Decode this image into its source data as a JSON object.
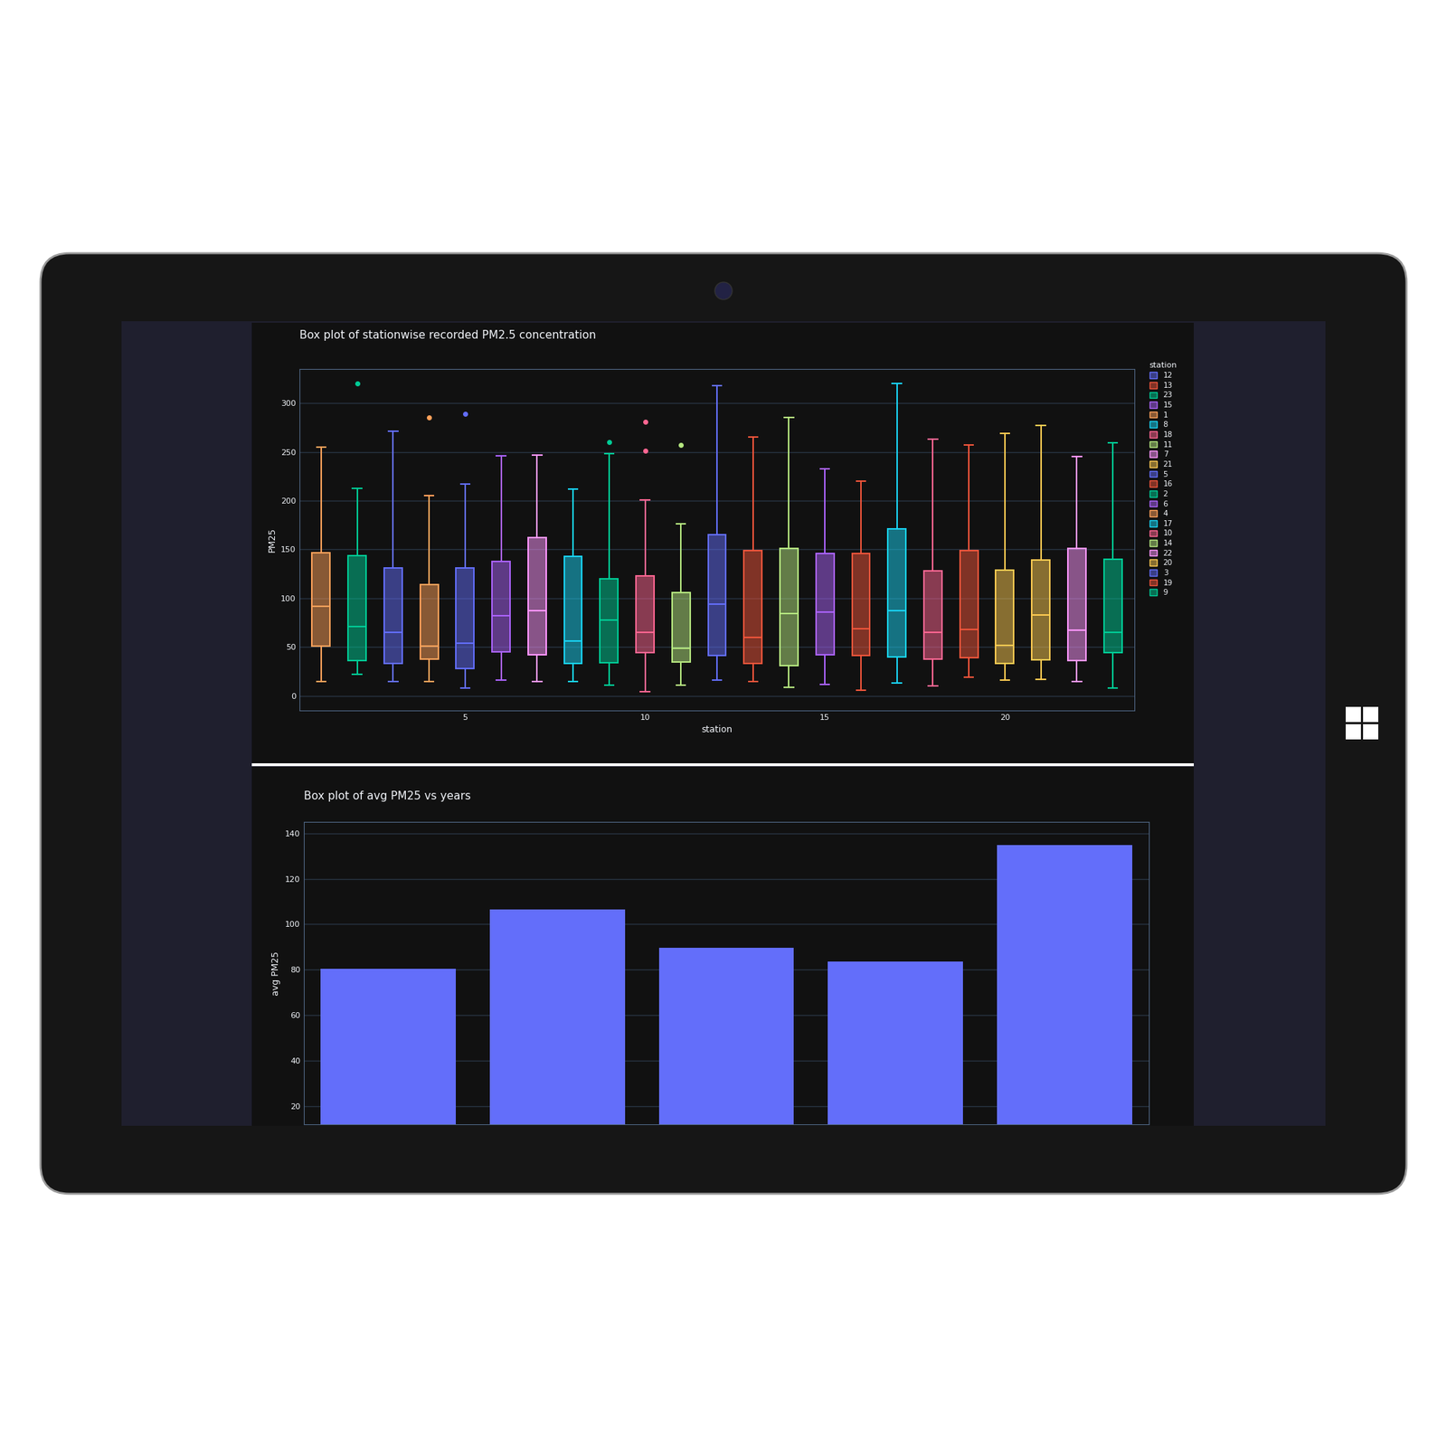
{
  "chart_data": [
    {
      "type": "box",
      "title": "Box plot of stationwise recorded PM2.5 concentration",
      "x_label": "station",
      "y_label": "PM25",
      "legend": "right",
      "legend_title": "station",
      "xlim": [
        0.4,
        23.6
      ],
      "xticks": [
        5,
        10,
        15,
        20
      ],
      "ylim": [
        -15,
        335
      ],
      "yticks": [
        0,
        50,
        100,
        150,
        200,
        250,
        300
      ],
      "grid": true,
      "series": [
        {
          "name": "12",
          "color": "#636efa",
          "x": 12,
          "whislo": 16,
          "q1": 41,
          "med": 94,
          "q3": 165,
          "whishi": 318,
          "outliers": []
        },
        {
          "name": "13",
          "color": "#EF553B",
          "x": 13,
          "whislo": 15,
          "q1": 33,
          "med": 60,
          "q3": 149,
          "whishi": 265,
          "outliers": []
        },
        {
          "name": "23",
          "color": "#00cc96",
          "x": 23,
          "whislo": 8,
          "q1": 44,
          "med": 65,
          "q3": 140,
          "whishi": 259,
          "outliers": []
        },
        {
          "name": "15",
          "color": "#ab63fa",
          "x": 15,
          "whislo": 12,
          "q1": 42,
          "med": 86,
          "q3": 146,
          "whishi": 233,
          "outliers": []
        },
        {
          "name": "1",
          "color": "#FFA15A",
          "x": 1,
          "whislo": 15,
          "q1": 51,
          "med": 92,
          "q3": 147,
          "whishi": 255,
          "outliers": []
        },
        {
          "name": "8",
          "color": "#19d3f3",
          "x": 8,
          "whislo": 15,
          "q1": 33,
          "med": 56,
          "q3": 143,
          "whishi": 212,
          "outliers": []
        },
        {
          "name": "18",
          "color": "#FF6692",
          "x": 18,
          "whislo": 10,
          "q1": 38,
          "med": 65,
          "q3": 128,
          "whishi": 263,
          "outliers": []
        },
        {
          "name": "11",
          "color": "#B6E880",
          "x": 11,
          "whislo": 11,
          "q1": 35,
          "med": 49,
          "q3": 106,
          "whishi": 176,
          "outliers": [
            257
          ]
        },
        {
          "name": "7",
          "color": "#FF97FF",
          "x": 7,
          "whislo": 15,
          "q1": 42,
          "med": 87,
          "q3": 162,
          "whishi": 247,
          "outliers": []
        },
        {
          "name": "21",
          "color": "#FECB52",
          "x": 21,
          "whislo": 17,
          "q1": 37,
          "med": 83,
          "q3": 139,
          "whishi": 277,
          "outliers": []
        },
        {
          "name": "5",
          "color": "#636efa",
          "x": 5,
          "whislo": 8,
          "q1": 28,
          "med": 54,
          "q3": 131,
          "whishi": 217,
          "outliers": [
            289
          ]
        },
        {
          "name": "16",
          "color": "#EF553B",
          "x": 16,
          "whislo": 6,
          "q1": 41,
          "med": 69,
          "q3": 146,
          "whishi": 220,
          "outliers": []
        },
        {
          "name": "2",
          "color": "#00cc96",
          "x": 2,
          "whislo": 22,
          "q1": 36,
          "med": 71,
          "q3": 144,
          "whishi": 213,
          "outliers": [
            320
          ]
        },
        {
          "name": "6",
          "color": "#ab63fa",
          "x": 6,
          "whislo": 16,
          "q1": 45,
          "med": 82,
          "q3": 138,
          "whishi": 246,
          "outliers": []
        },
        {
          "name": "4",
          "color": "#FFA15A",
          "x": 4,
          "whislo": 15,
          "q1": 38,
          "med": 51,
          "q3": 114,
          "whishi": 205,
          "outliers": [
            285
          ]
        },
        {
          "name": "17",
          "color": "#19d3f3",
          "x": 17,
          "whislo": 13,
          "q1": 40,
          "med": 87,
          "q3": 171,
          "whishi": 320,
          "outliers": []
        },
        {
          "name": "10",
          "color": "#FF6692",
          "x": 10,
          "whislo": 4,
          "q1": 44,
          "med": 65,
          "q3": 123,
          "whishi": 201,
          "outliers": [
            281,
            251
          ]
        },
        {
          "name": "14",
          "color": "#B6E880",
          "x": 14,
          "whislo": 9,
          "q1": 31,
          "med": 84,
          "q3": 151,
          "whishi": 285,
          "outliers": []
        },
        {
          "name": "22",
          "color": "#FF97FF",
          "x": 22,
          "whislo": 15,
          "q1": 36,
          "med": 67,
          "q3": 151,
          "whishi": 245,
          "outliers": []
        },
        {
          "name": "20",
          "color": "#FECB52",
          "x": 20,
          "whislo": 16,
          "q1": 33,
          "med": 52,
          "q3": 129,
          "whishi": 269,
          "outliers": []
        },
        {
          "name": "3",
          "color": "#636efa",
          "x": 3,
          "whislo": 15,
          "q1": 33,
          "med": 65,
          "q3": 131,
          "whishi": 271,
          "outliers": []
        },
        {
          "name": "19",
          "color": "#EF553B",
          "x": 19,
          "whislo": 19,
          "q1": 39,
          "med": 68,
          "q3": 149,
          "whishi": 257,
          "outliers": []
        },
        {
          "name": "9",
          "color": "#00cc96",
          "x": 9,
          "whislo": 11,
          "q1": 34,
          "med": 78,
          "q3": 120,
          "whishi": 248,
          "outliers": [
            260
          ]
        }
      ]
    },
    {
      "type": "bar",
      "title": "Box plot of avg PM25 vs years",
      "y_label": "avg PM25",
      "categories": [
        null,
        null,
        null,
        null,
        null
      ],
      "values": [
        80.4,
        106.4,
        89.6,
        83.6,
        134.8
      ],
      "color": "#636efa",
      "ylim": [
        12,
        145
      ],
      "yticks": [
        20,
        40,
        60,
        80,
        100,
        120,
        140
      ],
      "grid": true
    }
  ]
}
